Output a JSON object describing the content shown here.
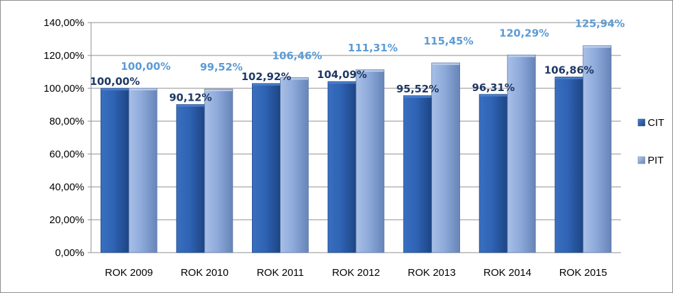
{
  "chart_data": {
    "type": "bar",
    "categories": [
      "ROK 2009",
      "ROK 2010",
      "ROK 2011",
      "ROK 2012",
      "ROK 2013",
      "ROK 2014",
      "ROK 2015"
    ],
    "series": [
      {
        "name": "CIT",
        "values": [
          100.0,
          90.12,
          102.92,
          104.09,
          95.52,
          96.31,
          106.86
        ],
        "labels": [
          "100,00%",
          "90,12%",
          "102,92%",
          "104,09%",
          "95,52%",
          "96,31%",
          "106,86%"
        ],
        "color": "#2e5fa8",
        "label_color": "#1f3864"
      },
      {
        "name": "PIT",
        "values": [
          100.0,
          99.52,
          106.46,
          111.31,
          115.45,
          120.29,
          125.94
        ],
        "labels": [
          "100,00%",
          "99,52%",
          "106,46%",
          "111,31%",
          "115,45%",
          "120,29%",
          "125,94%"
        ],
        "color": "#8faadc",
        "label_color": "#5b9bd5"
      }
    ],
    "ylim": [
      0,
      140
    ],
    "yticks": [
      0,
      20,
      40,
      60,
      80,
      100,
      120,
      140
    ],
    "ytick_labels": [
      "0,00%",
      "20,00%",
      "40,00%",
      "60,00%",
      "80,00%",
      "100,00%",
      "120,00%",
      "140,00%"
    ],
    "grid": true,
    "legend_position": "right",
    "title": "",
    "xlabel": "",
    "ylabel": ""
  }
}
